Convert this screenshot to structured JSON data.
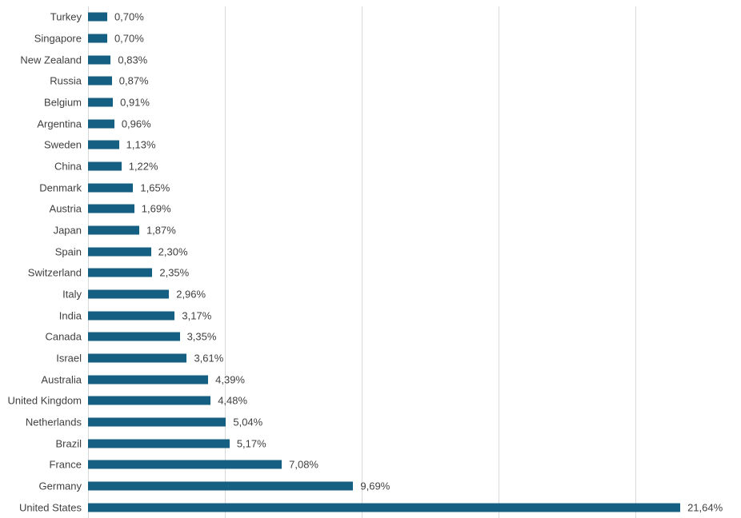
{
  "chart_data": {
    "type": "bar",
    "orientation": "horizontal",
    "title": "",
    "xlabel": "",
    "ylabel": "",
    "xlim": [
      0,
      23.86
    ],
    "grid": true,
    "gridline_percents": [
      5,
      10,
      15,
      20
    ],
    "value_suffix": "%",
    "decimal_separator": ",",
    "categories": [
      "Turkey",
      "Singapore",
      "New Zealand",
      "Russia",
      "Belgium",
      "Argentina",
      "Sweden",
      "China",
      "Denmark",
      "Austria",
      "Japan",
      "Spain",
      "Switzerland",
      "Italy",
      "India",
      "Canada",
      "Israel",
      "Australia",
      "United Kingdom",
      "Netherlands",
      "Brazil",
      "France",
      "Germany",
      "United States"
    ],
    "values": [
      0.7,
      0.7,
      0.83,
      0.87,
      0.91,
      0.96,
      1.13,
      1.22,
      1.65,
      1.69,
      1.87,
      2.3,
      2.35,
      2.96,
      3.17,
      3.35,
      3.61,
      4.39,
      4.48,
      5.04,
      5.17,
      7.08,
      9.69,
      21.64
    ],
    "value_labels": [
      "0,70%",
      "0,70%",
      "0,83%",
      "0,87%",
      "0,91%",
      "0,96%",
      "1,13%",
      "1,22%",
      "1,65%",
      "1,69%",
      "1,87%",
      "2,30%",
      "2,35%",
      "2,96%",
      "3,17%",
      "3,35%",
      "3,61%",
      "4,39%",
      "4,48%",
      "5,04%",
      "5,17%",
      "7,08%",
      "9,69%",
      "21,64%"
    ],
    "colors": {
      "bar": "#156082",
      "gridline": "#d9d9d9",
      "axis_line": "#d9d9d9",
      "label_text": "#404040",
      "background": "#ffffff"
    }
  }
}
